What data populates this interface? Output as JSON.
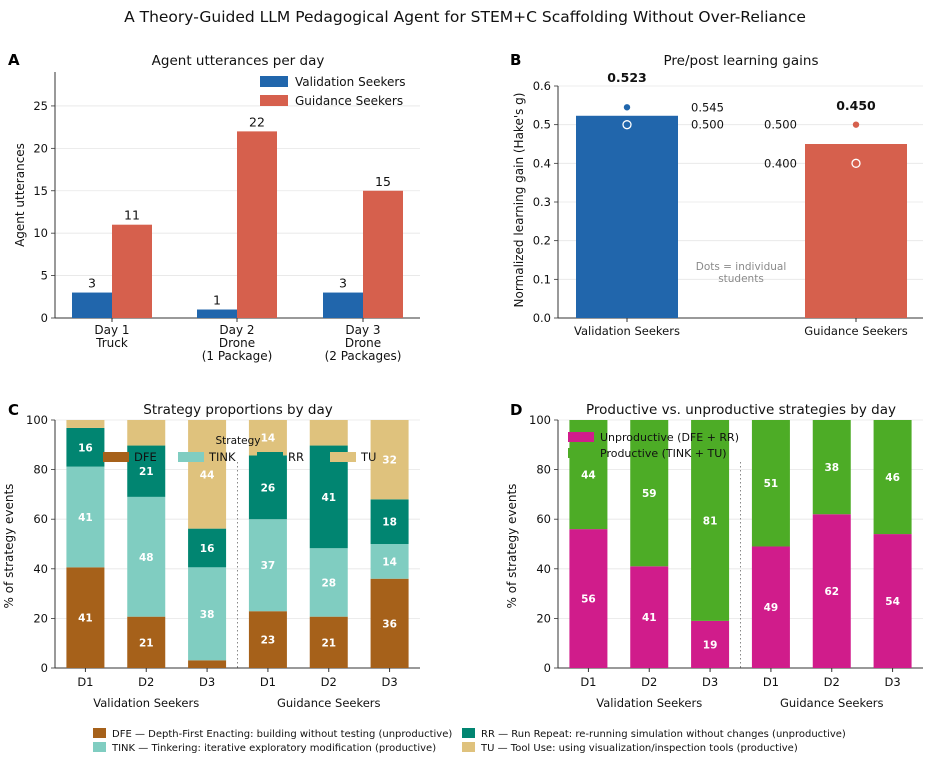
{
  "figure_title": "A Theory-Guided LLM Pedagogical Agent for STEM+C Scaffolding Without Over-Reliance",
  "colors": {
    "validation": "#2166ac",
    "guidance": "#d6604d",
    "DFE": "#a6611a",
    "TINK": "#80cdc1",
    "RR": "#018571",
    "TU": "#dfc27d",
    "unproductive": "#d01c8b",
    "productive": "#4dac26"
  },
  "chart_data": [
    {
      "panel": "A",
      "type": "bar",
      "title": "Agent utterances per day",
      "xlabel": "",
      "ylabel": "Agent utterances",
      "ylim": [
        0,
        29
      ],
      "yticks": [
        0,
        5,
        10,
        15,
        20,
        25
      ],
      "grid": true,
      "legend": "top-right",
      "categories": [
        [
          "Day 1",
          "Truck"
        ],
        [
          "Day 2",
          "Drone",
          "(1 Package)"
        ],
        [
          "Day 3",
          "Drone",
          "(2 Packages)"
        ]
      ],
      "series": [
        {
          "name": "Validation Seekers",
          "color_key": "validation",
          "values": [
            3,
            1,
            3
          ]
        },
        {
          "name": "Guidance Seekers",
          "color_key": "guidance",
          "values": [
            11,
            22,
            15
          ]
        }
      ]
    },
    {
      "panel": "B",
      "type": "bar",
      "title": "Pre/post learning gains",
      "xlabel": "",
      "ylabel": "Normalized learning gain (Hake's g)",
      "ylim": [
        0,
        0.6
      ],
      "yticks": [
        "0.0",
        "0.1",
        "0.2",
        "0.3",
        "0.4",
        "0.5",
        "0.6"
      ],
      "grid": true,
      "categories": [
        "Validation Seekers",
        "Guidance Seekers"
      ],
      "bars": [
        {
          "category": "Validation Seekers",
          "color_key": "validation",
          "value": 0.523,
          "label": "0.523",
          "points": [
            {
              "value": 0.545,
              "label": "0.545",
              "filled": true
            },
            {
              "value": 0.5,
              "label": "0.500",
              "filled": false
            }
          ]
        },
        {
          "category": "Guidance Seekers",
          "color_key": "guidance",
          "value": 0.45,
          "label": "0.450",
          "points": [
            {
              "value": 0.5,
              "label": "0.500",
              "filled": true
            },
            {
              "value": 0.4,
              "label": "0.400",
              "filled": false
            }
          ]
        }
      ],
      "annotation": [
        "Dots = individual",
        "students"
      ]
    },
    {
      "panel": "C",
      "type": "bar",
      "stacked": true,
      "title": "Strategy proportions by day",
      "xlabel": "",
      "ylabel": "% of strategy events",
      "ylim": [
        0,
        100
      ],
      "yticks": [
        0,
        20,
        40,
        60,
        80,
        100
      ],
      "grid": true,
      "legend_title": "Strategy",
      "legend": "top",
      "groups": [
        "Validation Seekers",
        "Guidance Seekers"
      ],
      "categories": [
        "D1",
        "D2",
        "D3",
        "D1",
        "D2",
        "D3"
      ],
      "series": [
        {
          "name": "DFE",
          "color_key": "DFE",
          "values": [
            40.6,
            20.7,
            3.1,
            22.9,
            20.7,
            36.0
          ],
          "labels": [
            "41",
            "21",
            "",
            "23",
            "21",
            "36"
          ]
        },
        {
          "name": "TINK",
          "color_key": "TINK",
          "values": [
            40.6,
            48.3,
            37.5,
            37.1,
            27.6,
            14.0
          ],
          "labels": [
            "41",
            "48",
            "38",
            "37",
            "28",
            "14"
          ]
        },
        {
          "name": "RR",
          "color_key": "RR",
          "values": [
            15.6,
            20.7,
            15.6,
            25.7,
            41.4,
            18.0
          ],
          "labels": [
            "16",
            "21",
            "16",
            "26",
            "41",
            "18"
          ]
        },
        {
          "name": "TU",
          "color_key": "TU",
          "values": [
            3.2,
            10.3,
            43.8,
            14.3,
            10.3,
            32.0
          ],
          "labels": [
            "",
            "",
            "44",
            "14",
            "",
            "32"
          ]
        }
      ]
    },
    {
      "panel": "D",
      "type": "bar",
      "stacked": true,
      "title": "Productive vs. unproductive strategies by day",
      "xlabel": "",
      "ylabel": "% of strategy events",
      "ylim": [
        0,
        100
      ],
      "yticks": [
        0,
        20,
        40,
        60,
        80,
        100
      ],
      "grid": true,
      "legend": "top-left",
      "groups": [
        "Validation Seekers",
        "Guidance Seekers"
      ],
      "categories": [
        "D1",
        "D2",
        "D3",
        "D1",
        "D2",
        "D3"
      ],
      "series": [
        {
          "name": "Unproductive (DFE + RR)",
          "color_key": "unproductive",
          "values": [
            56,
            41,
            19,
            49,
            62,
            54
          ],
          "labels": [
            "56",
            "41",
            "19",
            "49",
            "62",
            "54"
          ]
        },
        {
          "name": "Productive (TINK + TU)",
          "color_key": "productive",
          "values": [
            44,
            59,
            81,
            51,
            38,
            46
          ],
          "labels": [
            "44",
            "59",
            "81",
            "51",
            "38",
            "46"
          ]
        }
      ]
    }
  ],
  "panel_letters": [
    "A",
    "B",
    "C",
    "D"
  ],
  "footer_legend": [
    {
      "color_key": "DFE",
      "text": "DFE — Depth-First Enacting: building without testing (unproductive)"
    },
    {
      "color_key": "RR",
      "text": "RR — Run Repeat: re-running simulation without changes (unproductive)"
    },
    {
      "color_key": "TINK",
      "text": "TINK — Tinkering: iterative exploratory modification (productive)"
    },
    {
      "color_key": "TU",
      "text": "TU — Tool Use: using visualization/inspection tools (productive)"
    }
  ]
}
